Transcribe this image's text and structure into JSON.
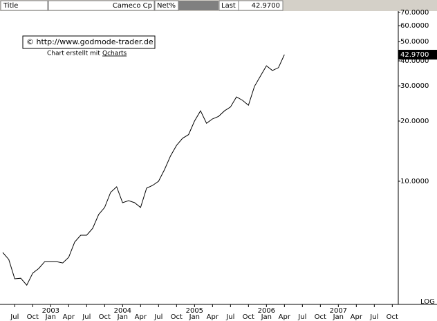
{
  "header": {
    "title": "Title",
    "name": "Cameco Cp",
    "net": "Net%",
    "last": "Last"
  },
  "chart_data": {
    "type": "line",
    "log_scale": true,
    "scale_label": "LOG",
    "color": "#000000",
    "annotation": "© http://www.godmode-trader.de",
    "credit": "Chart erstellt mit",
    "credit_link": "Qcharts",
    "last_value": {
      "value": 42.97,
      "label": "42.9700"
    },
    "x": [
      "2002-05",
      "2002-06",
      "2002-07",
      "2002-08",
      "2002-09",
      "2002-10",
      "2002-11",
      "2002-12",
      "2003-01",
      "2003-02",
      "2003-03",
      "2003-04",
      "2003-05",
      "2003-06",
      "2003-07",
      "2003-08",
      "2003-09",
      "2003-10",
      "2003-11",
      "2003-12",
      "2004-01",
      "2004-02",
      "2004-03",
      "2004-04",
      "2004-05",
      "2004-06",
      "2004-07",
      "2004-08",
      "2004-09",
      "2004-10",
      "2004-11",
      "2004-12",
      "2005-01",
      "2005-02",
      "2005-03",
      "2005-04",
      "2005-05",
      "2005-06",
      "2005-07",
      "2005-08",
      "2005-09",
      "2005-10",
      "2005-11",
      "2005-12",
      "2006-01",
      "2006-02",
      "2006-03",
      "2006-04"
    ],
    "values": [
      4.4,
      4.06,
      3.25,
      3.27,
      3.02,
      3.47,
      3.66,
      3.96,
      3.96,
      3.96,
      3.9,
      4.16,
      4.96,
      5.37,
      5.37,
      5.81,
      6.82,
      7.39,
      8.8,
      9.38,
      7.81,
      8.0,
      7.81,
      7.39,
      9.23,
      9.53,
      10.0,
      11.45,
      13.4,
      15.1,
      16.4,
      17.1,
      20.0,
      22.5,
      19.5,
      20.5,
      21.1,
      22.5,
      23.5,
      26.4,
      25.4,
      24.0,
      29.8,
      33.6,
      37.8,
      35.8,
      37.0,
      42.97
    ],
    "xlim": [
      "2002-05",
      "2007-11"
    ],
    "xticks": [
      {
        "value": "2002-07",
        "label": "Jul"
      },
      {
        "value": "2002-10",
        "label": "Oct"
      },
      {
        "value": "2003-01",
        "label": "Jan"
      },
      {
        "value": "2003-04",
        "label": "Apr"
      },
      {
        "value": "2003-07",
        "label": "Jul"
      },
      {
        "value": "2003-10",
        "label": "Oct"
      },
      {
        "value": "2004-01",
        "label": "Jan"
      },
      {
        "value": "2004-04",
        "label": "Apr"
      },
      {
        "value": "2004-07",
        "label": "Jul"
      },
      {
        "value": "2004-10",
        "label": "Oct"
      },
      {
        "value": "2005-01",
        "label": "Jan"
      },
      {
        "value": "2005-04",
        "label": "Apr"
      },
      {
        "value": "2005-07",
        "label": "Jul"
      },
      {
        "value": "2005-10",
        "label": "Oct"
      },
      {
        "value": "2006-01",
        "label": "Jan"
      },
      {
        "value": "2006-04",
        "label": "Apr"
      },
      {
        "value": "2006-07",
        "label": "Jul"
      },
      {
        "value": "2006-10",
        "label": "Oct"
      },
      {
        "value": "2007-01",
        "label": "Jan"
      },
      {
        "value": "2007-04",
        "label": "Apr"
      },
      {
        "value": "2007-07",
        "label": "Jul"
      },
      {
        "value": "2007-10",
        "label": "Oct"
      }
    ],
    "xyears": [
      {
        "value": "2003-01",
        "label": "2003"
      },
      {
        "value": "2004-01",
        "label": "2004"
      },
      {
        "value": "2005-01",
        "label": "2005"
      },
      {
        "value": "2006-01",
        "label": "2006"
      },
      {
        "value": "2007-01",
        "label": "2007"
      }
    ],
    "ylim": [
      2.42,
      71
    ],
    "yticks": [
      {
        "value": 10,
        "label": "10.0000"
      },
      {
        "value": 20,
        "label": "20.0000"
      },
      {
        "value": 30,
        "label": "30.0000"
      },
      {
        "value": 40,
        "label": "40.0000"
      },
      {
        "value": 50,
        "label": "50.0000"
      },
      {
        "value": 60,
        "label": "60.0000"
      },
      {
        "value": 70,
        "label": "70.0000"
      }
    ]
  }
}
